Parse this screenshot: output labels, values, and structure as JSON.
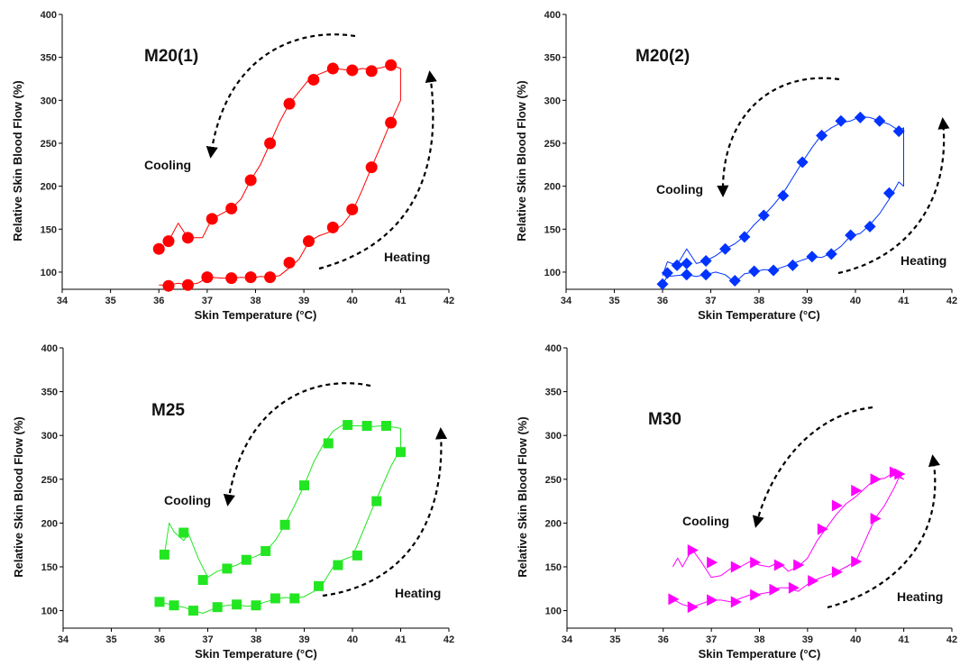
{
  "chart_data": [
    {
      "type": "line",
      "title": "M20(1)",
      "xlabel": "Skin Temperature (°C)",
      "ylabel": "Relative Skin Blood Flow (%)",
      "xlim": [
        34,
        42
      ],
      "ylim": [
        80,
        400
      ],
      "xticks": [
        "34",
        "35",
        "36",
        "37",
        "38",
        "39",
        "40",
        "41",
        "42"
      ],
      "yticks": [
        "100",
        "150",
        "200",
        "250",
        "300",
        "350",
        "400"
      ],
      "grid": false,
      "color": "#ff0000",
      "marker": "circle",
      "annotations": [
        "Cooling",
        "Heating"
      ],
      "series": [
        {
          "x": [
            36.0,
            36.1,
            36.2,
            36.3,
            36.4,
            36.5,
            36.6,
            36.8,
            36.9,
            37.1,
            37.3,
            37.5,
            37.7,
            37.9,
            38.1,
            38.3,
            38.5,
            38.7,
            38.9,
            39.1,
            39.3,
            39.6,
            39.8,
            40.0,
            40.2,
            40.4,
            40.6,
            40.8,
            41.0,
            41.0,
            40.8,
            40.6,
            40.4,
            40.2,
            40.0,
            39.8,
            39.6,
            39.3,
            39.1,
            38.9,
            38.7,
            38.5,
            38.3,
            38.1,
            37.9,
            37.7,
            37.5,
            37.3,
            37.1,
            36.9,
            36.6,
            36.4,
            36.2
          ],
          "y": [
            85,
            85,
            84,
            86,
            87,
            86,
            85,
            87,
            90,
            94,
            93,
            93,
            94,
            93,
            95,
            94,
            96,
            105,
            115,
            135,
            142,
            148,
            155,
            170,
            195,
            222,
            248,
            275,
            300,
            337,
            341,
            338,
            336,
            337,
            334,
            336,
            337,
            330,
            324,
            310,
            296,
            275,
            250,
            225,
            207,
            185,
            174,
            168,
            162,
            140,
            140,
            157,
            136
          ]
        }
      ],
      "markers": {
        "x": [
          36.2,
          36.6,
          37.0,
          37.5,
          37.9,
          38.3,
          38.7,
          39.1,
          39.6,
          40.0,
          40.4,
          40.8,
          40.8,
          40.4,
          40.0,
          39.6,
          39.2,
          38.7,
          38.3,
          37.9,
          37.5,
          37.1,
          36.6,
          36.2,
          36.0
        ],
        "y": [
          84,
          85,
          94,
          93,
          94,
          94,
          111,
          136,
          152,
          173,
          222,
          274,
          341,
          334,
          335,
          337,
          324,
          296,
          250,
          207,
          174,
          162,
          140,
          136,
          127
        ]
      }
    },
    {
      "type": "line",
      "title": "M20(2)",
      "xlabel": "Skin Temperature (°C)",
      "ylabel": "Relative Skin Blood Flow (%)",
      "xlim": [
        34,
        42
      ],
      "ylim": [
        80,
        400
      ],
      "xticks": [
        "34",
        "35",
        "36",
        "37",
        "38",
        "39",
        "40",
        "41",
        "42"
      ],
      "yticks": [
        "100",
        "150",
        "200",
        "250",
        "300",
        "350",
        "400"
      ],
      "grid": false,
      "color": "#0033ff",
      "marker": "diamond",
      "annotations": [
        "Cooling",
        "Heating"
      ],
      "series": [
        {
          "x": [
            36.0,
            36.1,
            36.3,
            36.5,
            36.7,
            36.9,
            37.1,
            37.3,
            37.5,
            37.7,
            37.9,
            38.1,
            38.3,
            38.5,
            38.7,
            38.9,
            39.1,
            39.3,
            39.5,
            39.7,
            39.9,
            40.1,
            40.3,
            40.5,
            40.7,
            40.9,
            41.0,
            41.0,
            40.9,
            40.7,
            40.5,
            40.3,
            40.1,
            39.9,
            39.7,
            39.5,
            39.3,
            39.1,
            38.9,
            38.7,
            38.5,
            38.3,
            38.1,
            37.9,
            37.7,
            37.5,
            37.3,
            37.1,
            36.9,
            36.7,
            36.5,
            36.3,
            36.1,
            36.0
          ],
          "y": [
            86,
            95,
            96,
            97,
            95,
            97,
            100,
            97,
            88,
            98,
            100,
            103,
            102,
            106,
            110,
            114,
            118,
            117,
            122,
            130,
            142,
            145,
            155,
            168,
            185,
            205,
            200,
            268,
            265,
            272,
            276,
            280,
            281,
            276,
            274,
            268,
            260,
            245,
            228,
            210,
            192,
            178,
            166,
            155,
            142,
            133,
            127,
            119,
            113,
            110,
            127,
            108,
            112,
            96
          ]
        }
      ],
      "markers": {
        "x": [
          36.0,
          36.5,
          36.9,
          37.5,
          37.9,
          38.3,
          38.7,
          39.1,
          39.5,
          39.9,
          40.3,
          40.7,
          40.9,
          40.5,
          40.1,
          39.7,
          39.3,
          38.9,
          38.5,
          38.1,
          37.7,
          37.3,
          36.9,
          36.5,
          36.3,
          36.1
        ],
        "y": [
          86,
          97,
          97,
          90,
          101,
          102,
          108,
          118,
          121,
          143,
          153,
          192,
          264,
          276,
          280,
          276,
          259,
          228,
          189,
          166,
          141,
          127,
          113,
          110,
          108,
          99
        ]
      }
    },
    {
      "type": "line",
      "title": "M25",
      "xlabel": "Skin Temperature (°C)",
      "ylabel": "Relative Skin Blood Flow (%)",
      "xlim": [
        34,
        42
      ],
      "ylim": [
        80,
        400
      ],
      "xticks": [
        "34",
        "35",
        "36",
        "37",
        "38",
        "39",
        "40",
        "41",
        "42"
      ],
      "yticks": [
        "100",
        "150",
        "200",
        "250",
        "300",
        "350",
        "400"
      ],
      "grid": false,
      "color": "#22e622",
      "marker": "square",
      "annotations": [
        "Cooling",
        "Heating"
      ],
      "series": [
        {
          "x": [
            36.0,
            36.3,
            36.5,
            36.7,
            36.9,
            37.2,
            37.4,
            37.6,
            37.8,
            38.0,
            38.2,
            38.4,
            38.6,
            38.8,
            39.0,
            39.2,
            39.4,
            39.6,
            39.8,
            40.0,
            40.2,
            40.4,
            40.6,
            40.8,
            41.0,
            41.0,
            40.8,
            40.6,
            40.4,
            40.2,
            40.0,
            39.8,
            39.6,
            39.4,
            39.2,
            39.0,
            38.8,
            38.6,
            38.4,
            38.2,
            38.0,
            37.8,
            37.6,
            37.4,
            37.2,
            37.0,
            36.8,
            36.6,
            36.5,
            36.3,
            36.2,
            36.1
          ],
          "y": [
            110,
            106,
            104,
            100,
            97,
            104,
            106,
            107,
            105,
            106,
            110,
            113,
            115,
            114,
            116,
            122,
            132,
            150,
            158,
            162,
            188,
            215,
            240,
            265,
            285,
            308,
            310,
            311,
            310,
            311,
            311,
            312,
            305,
            290,
            270,
            243,
            220,
            198,
            180,
            168,
            162,
            158,
            152,
            148,
            145,
            138,
            160,
            188,
            180,
            190,
            200,
            164
          ]
        }
      ],
      "markers": {
        "x": [
          36.0,
          36.3,
          36.7,
          37.2,
          37.6,
          38.0,
          38.4,
          38.8,
          39.3,
          39.7,
          40.1,
          40.5,
          41.0,
          40.7,
          40.3,
          39.9,
          39.5,
          39.0,
          38.6,
          38.2,
          37.8,
          37.4,
          36.9,
          36.5,
          36.1
        ],
        "y": [
          110,
          106,
          100,
          104,
          107,
          106,
          114,
          114,
          128,
          152,
          163,
          225,
          281,
          311,
          311,
          312,
          291,
          243,
          198,
          168,
          158,
          148,
          135,
          189,
          164
        ]
      }
    },
    {
      "type": "line",
      "title": "M30",
      "xlabel": "Skin Temperature (°C)",
      "ylabel": "Relative Skin Blood Flow (%)",
      "xlim": [
        34,
        42
      ],
      "ylim": [
        80,
        400
      ],
      "xticks": [
        "34",
        "35",
        "36",
        "37",
        "38",
        "39",
        "40",
        "41",
        "42"
      ],
      "yticks": [
        "100",
        "150",
        "200",
        "250",
        "300",
        "350",
        "400"
      ],
      "grid": false,
      "color": "#ff00ff",
      "marker": "triangle-right",
      "annotations": [
        "Cooling",
        "Heating"
      ],
      "series": [
        {
          "x": [
            36.2,
            36.4,
            36.6,
            36.8,
            37.0,
            37.2,
            37.4,
            37.6,
            37.8,
            38.0,
            38.2,
            38.4,
            38.6,
            38.8,
            39.0,
            39.2,
            39.4,
            39.6,
            39.8,
            40.0,
            40.2,
            40.4,
            40.6,
            40.8,
            40.9,
            41.0,
            40.8,
            40.6,
            40.4,
            40.2,
            40.0,
            39.8,
            39.6,
            39.4,
            39.2,
            39.0,
            38.8,
            38.6,
            38.4,
            38.2,
            38.0,
            37.8,
            37.6,
            37.4,
            37.2,
            37.0,
            36.8,
            36.6,
            36.4,
            36.3,
            36.2
          ],
          "y": [
            113,
            107,
            104,
            108,
            112,
            112,
            110,
            114,
            118,
            119,
            121,
            126,
            126,
            122,
            130,
            136,
            140,
            144,
            150,
            156,
            180,
            205,
            220,
            240,
            252,
            250,
            258,
            251,
            250,
            240,
            230,
            222,
            210,
            195,
            180,
            160,
            150,
            145,
            155,
            150,
            152,
            156,
            150,
            148,
            140,
            138,
            155,
            170,
            150,
            160,
            150
          ]
        }
      ],
      "markers": {
        "x": [
          36.2,
          36.6,
          37.0,
          37.5,
          37.9,
          38.3,
          38.7,
          39.1,
          39.6,
          40.0,
          40.4,
          40.8,
          40.9,
          40.4,
          40.0,
          39.6,
          39.3,
          38.8,
          38.4,
          37.9,
          37.5,
          37.0,
          36.6
        ],
        "y": [
          113,
          104,
          112,
          110,
          118,
          124,
          126,
          134,
          144,
          156,
          205,
          258,
          256,
          250,
          237,
          220,
          193,
          152,
          152,
          155,
          150,
          155,
          169
        ]
      }
    }
  ]
}
